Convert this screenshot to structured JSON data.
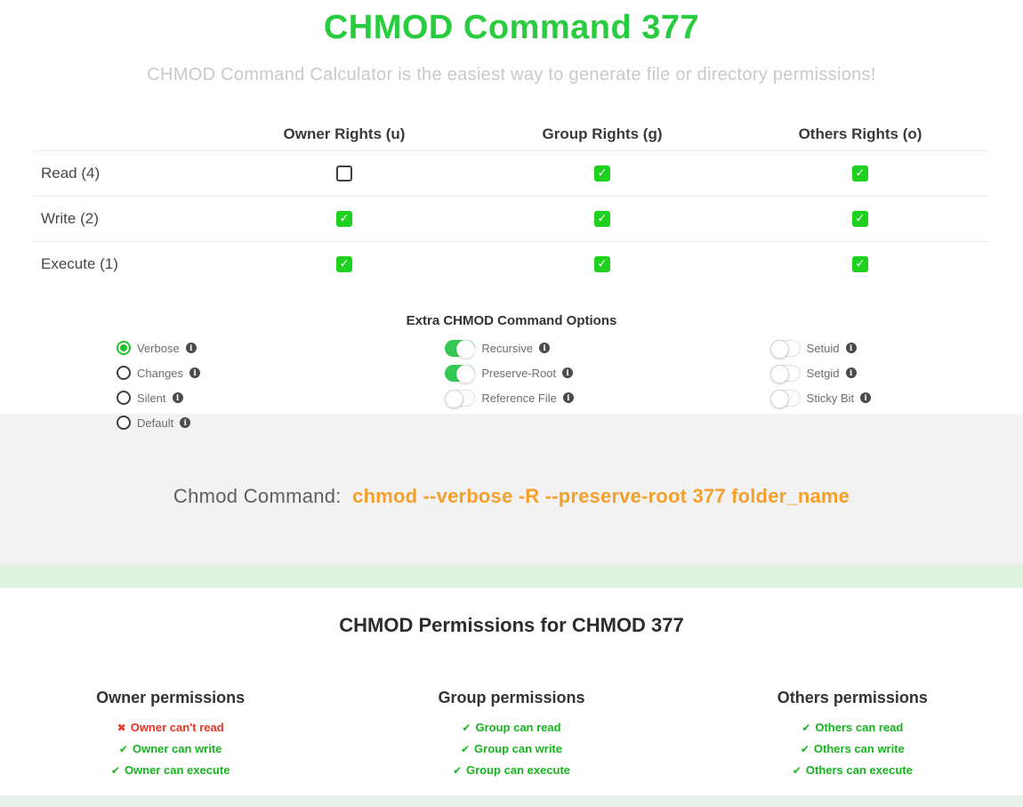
{
  "page": {
    "title": "CHMOD Command 377",
    "subtitle": "CHMOD Command Calculator is the easiest way to generate file or directory permissions!"
  },
  "table": {
    "columns": [
      "Owner Rights (u)",
      "Group Rights (g)",
      "Others Rights (o)"
    ],
    "rows": [
      {
        "label": "Read (4)",
        "owner": false,
        "group": true,
        "others": true
      },
      {
        "label": "Write (2)",
        "owner": true,
        "group": true,
        "others": true
      },
      {
        "label": "Execute (1)",
        "owner": true,
        "group": true,
        "others": true
      }
    ]
  },
  "options": {
    "heading": "Extra CHMOD Command Options",
    "radios": [
      {
        "label": "Verbose",
        "selected": true
      },
      {
        "label": "Changes",
        "selected": false
      },
      {
        "label": "Silent",
        "selected": false
      },
      {
        "label": "Default",
        "selected": false
      }
    ],
    "toggles_middle": [
      {
        "label": "Recursive",
        "on": true
      },
      {
        "label": "Preserve-Root",
        "on": true
      },
      {
        "label": "Reference File",
        "on": false
      }
    ],
    "toggles_right": [
      {
        "label": "Setuid",
        "on": false
      },
      {
        "label": "Setgid",
        "on": false
      },
      {
        "label": "Sticky Bit",
        "on": false
      }
    ]
  },
  "command": {
    "label": "Chmod Command:",
    "value": "chmod --verbose -R --preserve-root 377 folder_name"
  },
  "results": {
    "heading": "CHMOD Permissions for CHMOD 377",
    "groups": [
      {
        "title": "Owner permissions",
        "items": [
          {
            "text": "Owner can't read",
            "ok": false
          },
          {
            "text": "Owner can write",
            "ok": true
          },
          {
            "text": "Owner can execute",
            "ok": true
          }
        ]
      },
      {
        "title": "Group permissions",
        "items": [
          {
            "text": "Group can read",
            "ok": true
          },
          {
            "text": "Group can write",
            "ok": true
          },
          {
            "text": "Group can execute",
            "ok": true
          }
        ]
      },
      {
        "title": "Others permissions",
        "items": [
          {
            "text": "Others can read",
            "ok": true
          },
          {
            "text": "Others can write",
            "ok": true
          },
          {
            "text": "Others can execute",
            "ok": true
          }
        ]
      }
    ]
  },
  "icons": {
    "info": "info-icon",
    "check": "✔",
    "cross": "✖",
    "checkbox_check": "✓"
  },
  "colors": {
    "title_green": "#29cc3e",
    "checkbox_green": "#1fd11f",
    "toggle_green": "#35c855",
    "radio_green": "#21c32c",
    "command_orange": "#f5a02b",
    "ok_green": "#13b51c",
    "error_red": "#e93323",
    "section_gray": "#f2f2f2",
    "band_green": "#dff1e1"
  }
}
